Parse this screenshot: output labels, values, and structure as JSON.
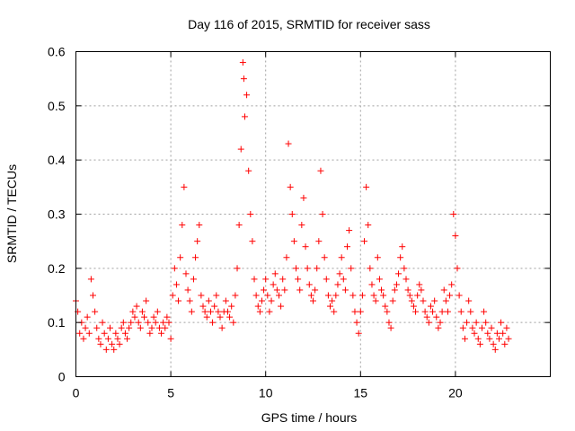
{
  "chart_data": {
    "type": "scatter",
    "title": "Day 116 of 2015, SRMTID for receiver sass",
    "xlabel": "GPS time / hours",
    "ylabel": "SRMTID / TECUs",
    "xlim": [
      0,
      25
    ],
    "ylim": [
      0,
      0.6
    ],
    "xticks": [
      0,
      5,
      10,
      15,
      20
    ],
    "xtick_labels": [
      "0",
      "5",
      "10",
      "15",
      "20"
    ],
    "yticks": [
      0,
      0.1,
      0.2,
      0.3,
      0.4,
      0.5,
      0.6
    ],
    "ytick_labels": [
      "0",
      "0.1",
      "0.2",
      "0.3",
      "0.4",
      "0.5",
      "0.6"
    ],
    "grid": true,
    "marker": "+",
    "color": "#ff0000",
    "series": [
      {
        "name": "SRMTID",
        "x": [
          0.0,
          0.1,
          0.2,
          0.3,
          0.4,
          0.5,
          0.6,
          0.7,
          0.8,
          0.9,
          1.0,
          1.1,
          1.2,
          1.3,
          1.4,
          1.5,
          1.6,
          1.7,
          1.8,
          1.9,
          2.0,
          2.1,
          2.2,
          2.3,
          2.4,
          2.5,
          2.6,
          2.7,
          2.8,
          2.9,
          3.0,
          3.1,
          3.2,
          3.3,
          3.4,
          3.5,
          3.6,
          3.7,
          3.8,
          3.9,
          4.0,
          4.1,
          4.2,
          4.3,
          4.4,
          4.5,
          4.6,
          4.7,
          4.8,
          4.9,
          5.0,
          5.1,
          5.2,
          5.3,
          5.4,
          5.5,
          5.6,
          5.7,
          5.8,
          5.9,
          6.0,
          6.1,
          6.2,
          6.3,
          6.4,
          6.5,
          6.6,
          6.7,
          6.8,
          6.9,
          7.0,
          7.1,
          7.2,
          7.3,
          7.4,
          7.5,
          7.6,
          7.7,
          7.8,
          7.9,
          8.0,
          8.1,
          8.2,
          8.3,
          8.4,
          8.5,
          8.6,
          8.7,
          8.8,
          8.85,
          8.9,
          9.0,
          9.1,
          9.2,
          9.3,
          9.4,
          9.5,
          9.6,
          9.7,
          9.8,
          9.9,
          10.0,
          10.1,
          10.2,
          10.3,
          10.4,
          10.5,
          10.6,
          10.7,
          10.8,
          10.9,
          11.0,
          11.1,
          11.2,
          11.3,
          11.4,
          11.5,
          11.6,
          11.7,
          11.8,
          11.9,
          12.0,
          12.1,
          12.2,
          12.3,
          12.4,
          12.5,
          12.6,
          12.7,
          12.8,
          12.9,
          13.0,
          13.1,
          13.2,
          13.3,
          13.4,
          13.5,
          13.6,
          13.7,
          13.8,
          13.9,
          14.0,
          14.1,
          14.2,
          14.3,
          14.4,
          14.5,
          14.6,
          14.7,
          14.8,
          14.9,
          15.0,
          15.1,
          15.2,
          15.3,
          15.4,
          15.5,
          15.6,
          15.7,
          15.8,
          15.9,
          16.0,
          16.1,
          16.2,
          16.3,
          16.4,
          16.5,
          16.6,
          16.7,
          16.8,
          16.9,
          17.0,
          17.1,
          17.2,
          17.3,
          17.4,
          17.5,
          17.6,
          17.7,
          17.8,
          17.9,
          18.0,
          18.1,
          18.2,
          18.3,
          18.4,
          18.5,
          18.6,
          18.7,
          18.8,
          18.9,
          19.0,
          19.1,
          19.2,
          19.3,
          19.4,
          19.5,
          19.6,
          19.7,
          19.8,
          19.9,
          20.0,
          20.1,
          20.2,
          20.3,
          20.4,
          20.5,
          20.6,
          20.7,
          20.8,
          20.9,
          21.0,
          21.1,
          21.2,
          21.3,
          21.4,
          21.5,
          21.6,
          21.7,
          21.8,
          21.9,
          22.0,
          22.1,
          22.2,
          22.3,
          22.4,
          22.5,
          22.6,
          22.7,
          22.8
        ],
        "y": [
          0.14,
          0.12,
          0.08,
          0.1,
          0.07,
          0.09,
          0.11,
          0.08,
          0.18,
          0.15,
          0.12,
          0.09,
          0.07,
          0.06,
          0.1,
          0.08,
          0.05,
          0.07,
          0.09,
          0.06,
          0.05,
          0.08,
          0.07,
          0.06,
          0.09,
          0.1,
          0.08,
          0.07,
          0.09,
          0.1,
          0.12,
          0.11,
          0.13,
          0.1,
          0.09,
          0.12,
          0.11,
          0.14,
          0.1,
          0.08,
          0.09,
          0.11,
          0.1,
          0.12,
          0.09,
          0.08,
          0.1,
          0.09,
          0.11,
          0.1,
          0.07,
          0.15,
          0.2,
          0.17,
          0.14,
          0.22,
          0.28,
          0.35,
          0.19,
          0.16,
          0.14,
          0.12,
          0.18,
          0.22,
          0.25,
          0.28,
          0.15,
          0.13,
          0.12,
          0.11,
          0.14,
          0.12,
          0.1,
          0.13,
          0.15,
          0.12,
          0.11,
          0.09,
          0.12,
          0.14,
          0.12,
          0.11,
          0.13,
          0.1,
          0.15,
          0.2,
          0.28,
          0.42,
          0.58,
          0.55,
          0.48,
          0.52,
          0.38,
          0.3,
          0.25,
          0.18,
          0.15,
          0.13,
          0.12,
          0.14,
          0.16,
          0.18,
          0.15,
          0.12,
          0.14,
          0.17,
          0.19,
          0.16,
          0.15,
          0.13,
          0.18,
          0.16,
          0.22,
          0.43,
          0.35,
          0.3,
          0.25,
          0.2,
          0.18,
          0.16,
          0.28,
          0.33,
          0.24,
          0.2,
          0.17,
          0.15,
          0.14,
          0.16,
          0.2,
          0.25,
          0.38,
          0.3,
          0.22,
          0.18,
          0.15,
          0.13,
          0.14,
          0.12,
          0.15,
          0.17,
          0.19,
          0.22,
          0.18,
          0.16,
          0.24,
          0.27,
          0.2,
          0.15,
          0.12,
          0.1,
          0.08,
          0.12,
          0.15,
          0.25,
          0.35,
          0.28,
          0.2,
          0.17,
          0.15,
          0.14,
          0.22,
          0.18,
          0.16,
          0.15,
          0.13,
          0.12,
          0.1,
          0.09,
          0.14,
          0.16,
          0.17,
          0.19,
          0.22,
          0.24,
          0.2,
          0.18,
          0.16,
          0.15,
          0.14,
          0.13,
          0.12,
          0.15,
          0.17,
          0.16,
          0.14,
          0.12,
          0.11,
          0.1,
          0.13,
          0.12,
          0.14,
          0.11,
          0.09,
          0.1,
          0.12,
          0.16,
          0.14,
          0.12,
          0.15,
          0.17,
          0.3,
          0.26,
          0.2,
          0.15,
          0.12,
          0.09,
          0.07,
          0.1,
          0.14,
          0.12,
          0.09,
          0.08,
          0.1,
          0.07,
          0.06,
          0.09,
          0.12,
          0.1,
          0.08,
          0.07,
          0.09,
          0.06,
          0.05,
          0.08,
          0.07,
          0.1,
          0.08,
          0.06,
          0.09,
          0.07
        ]
      }
    ]
  }
}
